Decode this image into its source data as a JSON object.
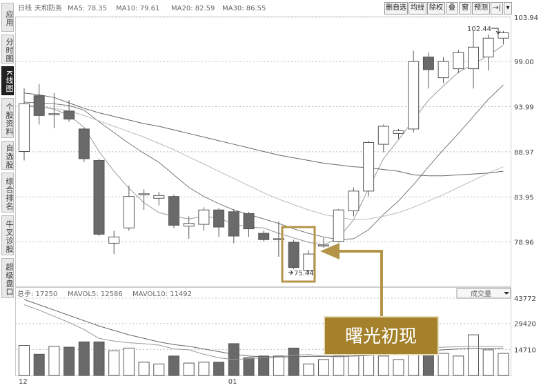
{
  "sidebar": {
    "tabs": [
      "应用",
      "分时图",
      "K线图",
      "个股资料",
      "自选股",
      "综合排名",
      "牛叉诊股",
      "超级盘口"
    ],
    "active_index": 2
  },
  "toolbar": {
    "buttons": [
      "删自选",
      "均线",
      "除权",
      "叠",
      "窗",
      "预测"
    ],
    "icon_buttons": [
      "arrow-end-icon",
      "dropdown-icon"
    ]
  },
  "legend": {
    "period": "日线",
    "name": "天和防务",
    "ma5": "MA5: 78.35",
    "ma10": "MA10: 79.61",
    "ma20": "MA20: 82.59",
    "ma30": "MA30: 86.55"
  },
  "volume_legend": {
    "vol": "总手: 17250",
    "mavol5": "MAVOL5: 12586",
    "mavol10": "MAVOL10: 11492"
  },
  "volume_select": "成交量",
  "price_axis": [
    "103.94",
    "99.00",
    "93.99",
    "88.97",
    "83.95",
    "78.96"
  ],
  "volume_axis": [
    "43772",
    "29420",
    "14710"
  ],
  "date_axis": [
    "12",
    "01"
  ],
  "annotations": {
    "high_label": "102.44",
    "low_label": "75.44",
    "callout_text": "曙光初现"
  },
  "colors": {
    "up": "#ffffff",
    "down": "#6a6a6a",
    "ma_line": "#888888",
    "callout_bg": "#a4812a",
    "callout_border": "#b39448",
    "callout_text": "#ffffff"
  },
  "chart_data": {
    "type": "candlestick",
    "price_range": [
      74,
      104
    ],
    "volume_range": [
      0,
      43772
    ],
    "candles": [
      {
        "o": 89.0,
        "h": 96.0,
        "l": 88.0,
        "c": 94.3,
        "v": 17000
      },
      {
        "o": 95.2,
        "h": 96.5,
        "l": 92.0,
        "c": 93.0,
        "v": 12000
      },
      {
        "o": 93.2,
        "h": 95.5,
        "l": 91.6,
        "c": 93.2,
        "v": 16500
      },
      {
        "o": 93.5,
        "h": 94.7,
        "l": 92.3,
        "c": 92.6,
        "v": 16000
      },
      {
        "o": 91.5,
        "h": 91.6,
        "l": 87.8,
        "c": 88.2,
        "v": 19000
      },
      {
        "o": 88.0,
        "h": 88.2,
        "l": 79.6,
        "c": 79.8,
        "v": 19000
      },
      {
        "o": 78.8,
        "h": 80.2,
        "l": 77.6,
        "c": 79.5,
        "v": 14000
      },
      {
        "o": 80.5,
        "h": 85.2,
        "l": 80.2,
        "c": 84.0,
        "v": 15500
      },
      {
        "o": 84.2,
        "h": 84.8,
        "l": 82.5,
        "c": 84.3,
        "v": 7500
      },
      {
        "o": 83.8,
        "h": 84.5,
        "l": 83.0,
        "c": 84.1,
        "v": 6500
      },
      {
        "o": 84.0,
        "h": 84.2,
        "l": 80.5,
        "c": 80.8,
        "v": 11000
      },
      {
        "o": 80.7,
        "h": 81.8,
        "l": 79.3,
        "c": 81.0,
        "v": 7000
      },
      {
        "o": 80.9,
        "h": 82.8,
        "l": 80.2,
        "c": 82.5,
        "v": 7500
      },
      {
        "o": 82.5,
        "h": 82.7,
        "l": 79.5,
        "c": 80.6,
        "v": 7500
      },
      {
        "o": 82.3,
        "h": 82.6,
        "l": 78.8,
        "c": 79.6,
        "v": 18000
      },
      {
        "o": 82.1,
        "h": 82.3,
        "l": 79.5,
        "c": 80.4,
        "v": 10000
      },
      {
        "o": 79.9,
        "h": 80.2,
        "l": 79.0,
        "c": 79.2,
        "v": 11000
      },
      {
        "o": 79.3,
        "h": 81.2,
        "l": 77.3,
        "c": 79.3,
        "v": 11000
      },
      {
        "o": 78.9,
        "h": 79.2,
        "l": 75.9,
        "c": 76.1,
        "v": 15500
      },
      {
        "o": 75.8,
        "h": 78.0,
        "l": 75.4,
        "c": 77.6,
        "v": 6500
      },
      {
        "o": 78.5,
        "h": 79.4,
        "l": 78.3,
        "c": 78.6,
        "v": 9000
      },
      {
        "o": 79.0,
        "h": 82.6,
        "l": 78.9,
        "c": 82.5,
        "v": 11000
      },
      {
        "o": 82.4,
        "h": 85.0,
        "l": 81.8,
        "c": 84.6,
        "v": 12000
      },
      {
        "o": 84.6,
        "h": 90.2,
        "l": 84.0,
        "c": 90.0,
        "v": 14000
      },
      {
        "o": 89.8,
        "h": 92.0,
        "l": 88.9,
        "c": 91.8,
        "v": 11000
      },
      {
        "o": 91.0,
        "h": 91.5,
        "l": 90.4,
        "c": 91.3,
        "v": 9000
      },
      {
        "o": 91.5,
        "h": 100.2,
        "l": 91.1,
        "c": 99.0,
        "v": 30000
      },
      {
        "o": 99.5,
        "h": 100.0,
        "l": 96.0,
        "c": 98.1,
        "v": 14000
      },
      {
        "o": 97.2,
        "h": 99.5,
        "l": 96.6,
        "c": 99.0,
        "v": 12500
      },
      {
        "o": 98.2,
        "h": 100.3,
        "l": 97.7,
        "c": 100.0,
        "v": 11000
      },
      {
        "o": 98.2,
        "h": 102.4,
        "l": 96.0,
        "c": 100.6,
        "v": 23000
      },
      {
        "o": 99.5,
        "h": 102.0,
        "l": 98.0,
        "c": 101.6,
        "v": 14500
      },
      {
        "o": 101.6,
        "h": 102.4,
        "l": 100.9,
        "c": 102.2,
        "v": 12500
      }
    ],
    "ma5": [
      94.0,
      94.0,
      93.7,
      93.0,
      91.7,
      89.0,
      86.8,
      84.9,
      83.3,
      82.2,
      81.8,
      81.5,
      81.8,
      81.6,
      80.9,
      80.6,
      80.5,
      79.9,
      79.4,
      78.9,
      78.6,
      79.4,
      81.4,
      84.9,
      88.2,
      90.3,
      92.5,
      94.7,
      96.3,
      97.8,
      98.7,
      99.7,
      100.8
    ],
    "ma10": [
      94.5,
      94.4,
      94.3,
      94.1,
      93.6,
      92.3,
      91.1,
      89.9,
      88.8,
      87.8,
      86.4,
      85.0,
      84.0,
      83.2,
      82.5,
      82.0,
      81.5,
      81.0,
      80.4,
      79.9,
      79.5,
      79.2,
      79.3,
      80.3,
      82.0,
      83.5,
      85.3,
      87.3,
      89.2,
      91.0,
      92.9,
      94.8,
      96.4
    ],
    "ma20": [
      94.2,
      94.0,
      93.8,
      93.5,
      93.0,
      92.4,
      91.8,
      91.2,
      90.6,
      89.9,
      89.2,
      88.4,
      87.6,
      86.8,
      86.0,
      85.2,
      84.4,
      83.7,
      83.1,
      82.5,
      82.0,
      81.7,
      81.4,
      81.5,
      81.8,
      82.2,
      82.8,
      83.5,
      84.2,
      85.0,
      85.8,
      86.6,
      87.3
    ],
    "ma30": [
      95.5,
      95.3,
      95.0,
      94.4,
      93.8,
      93.3,
      92.9,
      92.5,
      92.1,
      91.8,
      91.4,
      91.0,
      90.6,
      90.2,
      89.8,
      89.4,
      89.0,
      88.6,
      88.3,
      88.0,
      87.7,
      87.5,
      87.3,
      87.2,
      87.0,
      86.8,
      86.4,
      86.3,
      86.3,
      86.4,
      86.5,
      86.6,
      86.8
    ],
    "mavol5": [
      40000,
      37000,
      33500,
      30000,
      26000,
      21000,
      19500,
      18500,
      18000,
      17200,
      15000,
      14500,
      12000,
      10000,
      9000,
      9500,
      10000,
      10500,
      11500,
      11800,
      11000,
      10500,
      11000,
      11500,
      12000,
      12500,
      14000,
      15500,
      16000,
      16200,
      16400,
      16500,
      16500
    ],
    "mavol10": [
      43000,
      40000,
      37000,
      34000,
      31000,
      28000,
      25500,
      23000,
      21000,
      19000,
      17500,
      16500,
      15000,
      13500,
      12000,
      11000,
      10500,
      10500,
      10500,
      10800,
      10800,
      10900,
      11000,
      11300,
      11800,
      12300,
      13000,
      13800,
      14500,
      15000,
      15300,
      15400,
      15500
    ]
  }
}
